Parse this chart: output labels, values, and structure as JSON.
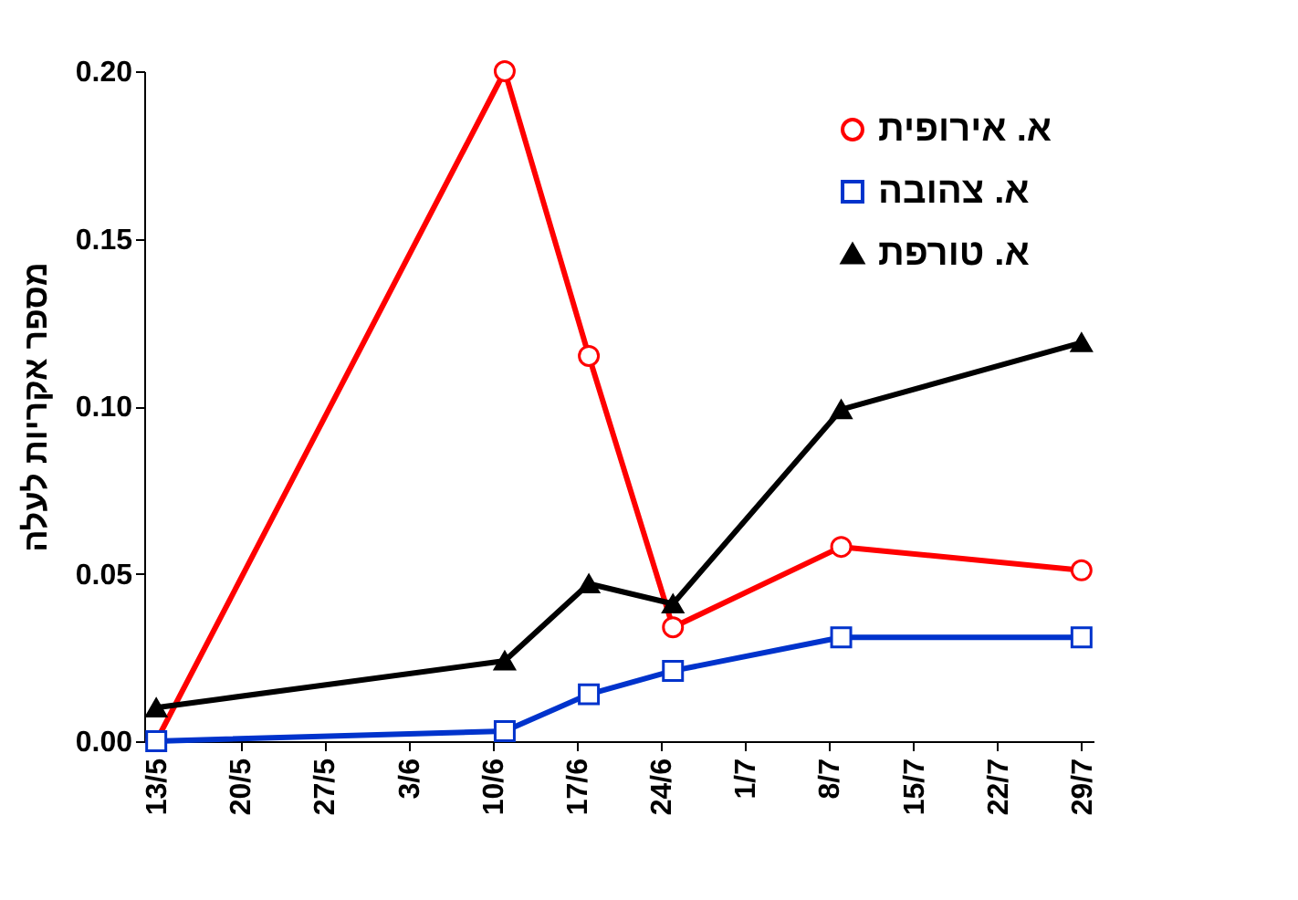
{
  "chart_data": {
    "type": "line",
    "ylabel": "מספר אקריות לעלה",
    "x": [
      "--05-13",
      "--06-11",
      "--06-18",
      "--06-25",
      "--07-09",
      "--07-29"
    ],
    "series": [
      {
        "name": "א. אירופית",
        "color": "#ff0000",
        "marker": "circle",
        "values": [
          0.0,
          0.2,
          0.115,
          0.034,
          0.058,
          0.051
        ]
      },
      {
        "name": "א. צהובה",
        "color": "#0033cc",
        "marker": "square",
        "values": [
          0.0,
          0.003,
          0.014,
          0.021,
          0.031,
          0.031
        ]
      },
      {
        "name": "א. טורפת",
        "color": "#000000",
        "marker": "triangle",
        "values": [
          0.01,
          0.024,
          0.047,
          0.041,
          0.099,
          0.119
        ]
      }
    ],
    "xlim": [
      "--05-12",
      "--07-30"
    ],
    "xticks": [
      {
        "value": "--05-13",
        "label": "13/5"
      },
      {
        "value": "--05-20",
        "label": "20/5"
      },
      {
        "value": "--05-27",
        "label": "27/5"
      },
      {
        "value": "--06-03",
        "label": "3/6"
      },
      {
        "value": "--06-10",
        "label": "10/6"
      },
      {
        "value": "--06-17",
        "label": "17/6"
      },
      {
        "value": "--06-24",
        "label": "24/6"
      },
      {
        "value": "--07-01",
        "label": "1/7"
      },
      {
        "value": "--07-08",
        "label": "8/7"
      },
      {
        "value": "--07-15",
        "label": "15/7"
      },
      {
        "value": "--07-22",
        "label": "22/7"
      },
      {
        "value": "--07-29",
        "label": "29/7"
      }
    ],
    "ylim": [
      0,
      0.2
    ],
    "yticks": [
      {
        "value": 0,
        "label": "0.00"
      },
      {
        "value": 0.05,
        "label": "0.05"
      },
      {
        "value": 0.1,
        "label": "0.10"
      },
      {
        "value": 0.15,
        "label": "0.15"
      },
      {
        "value": 0.2,
        "label": "0.20"
      }
    ],
    "grid": false,
    "legend": "top right",
    "line_style": "solid"
  }
}
